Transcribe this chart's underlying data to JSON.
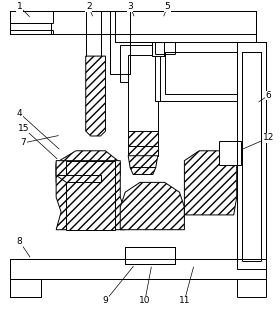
{
  "background_color": "#ffffff",
  "line_color": "#000000",
  "figure_width": 2.8,
  "figure_height": 3.12,
  "dpi": 100
}
